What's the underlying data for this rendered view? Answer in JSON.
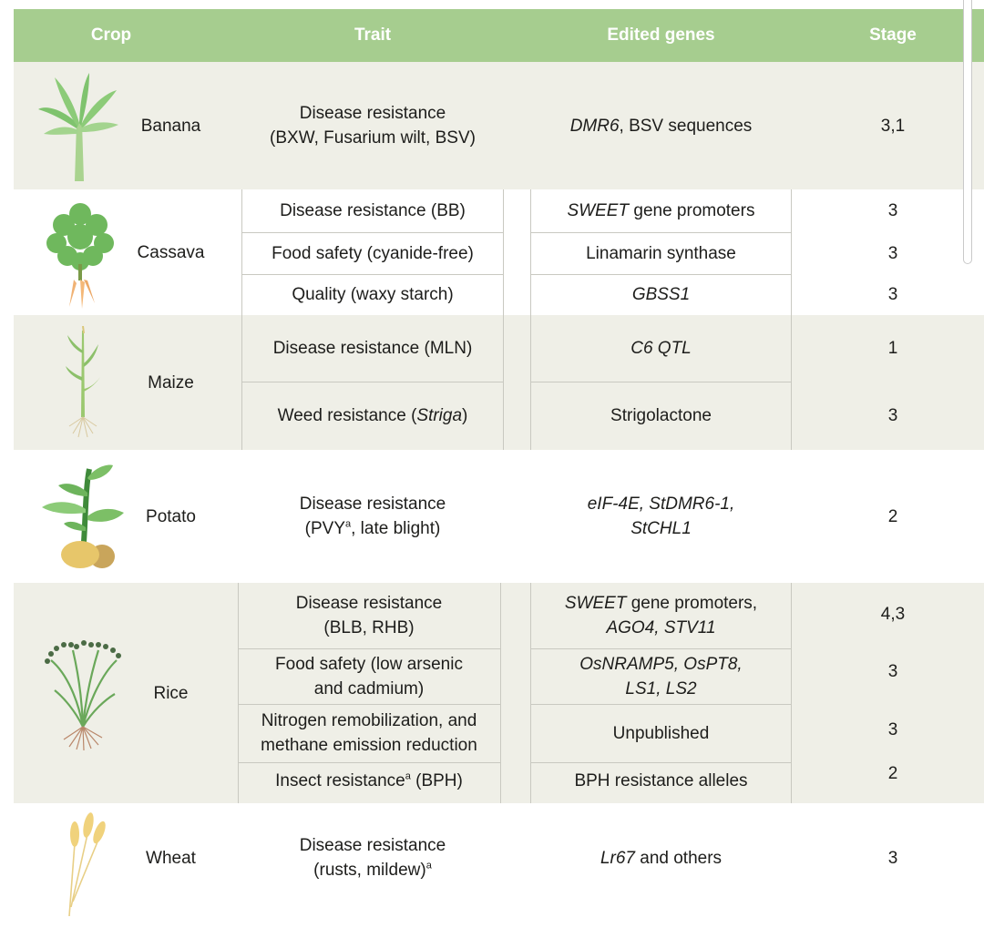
{
  "header": {
    "crop": "Crop",
    "trait": "Trait",
    "genes": "Edited genes",
    "stage": "Stage"
  },
  "rows": {
    "banana": {
      "crop": "Banana",
      "trait_line1": "Disease resistance",
      "trait_line2": "(BXW, Fusarium wilt, BSV)",
      "gene_italic": "DMR6",
      "gene_rest": ", BSV sequences",
      "stage": "3,1"
    },
    "cassava": {
      "crop": "Cassava",
      "sub": [
        {
          "trait": "Disease resistance (BB)",
          "gene_italic": "SWEET",
          "gene_rest": " gene promoters",
          "stage": "3"
        },
        {
          "trait": "Food safety (cyanide-free)",
          "gene_italic": "",
          "gene_rest": "Linamarin synthase",
          "stage": "3"
        },
        {
          "trait": "Quality (waxy starch)",
          "gene_italic": "GBSS1",
          "gene_rest": "",
          "stage": "3"
        }
      ]
    },
    "maize": {
      "crop": "Maize",
      "sub": [
        {
          "trait": "Disease resistance (MLN)",
          "gene_italic": "C6 QTL",
          "stage": "1"
        },
        {
          "trait_pre": "Weed resistance (",
          "trait_italic": "Striga",
          "trait_post": ")",
          "gene": "Strigolactone",
          "stage": "3"
        }
      ]
    },
    "potato": {
      "crop": "Potato",
      "trait_line1": "Disease resistance",
      "trait_line2_pre": "(PVY",
      "trait_line2_sup": "a",
      "trait_line2_post": ", late blight)",
      "gene_line1": "eIF-4E, StDMR6-1,",
      "gene_line2": "StCHL1",
      "stage": "2"
    },
    "rice": {
      "crop": "Rice",
      "sub": [
        {
          "trait_line1": "Disease resistance",
          "trait_line2": "(BLB, RHB)",
          "gene_l1_italic": "SWEET",
          "gene_l1_rest": " gene promoters,",
          "gene_line2": "AGO4, STV11",
          "stage": "4,3"
        },
        {
          "trait_line1": "Food safety (low arsenic",
          "trait_line2": "and cadmium)",
          "gene_line1": "OsNRAMP5, OsPT8,",
          "gene_line2": "LS1, LS2",
          "stage": "3"
        },
        {
          "trait_line1": "Nitrogen remobilization, and",
          "trait_line2": "methane emission reduction",
          "gene": "Unpublished",
          "stage": "3"
        },
        {
          "trait_pre": "Insect resistance",
          "trait_sup": "a",
          "trait_post": " (BPH)",
          "gene": "BPH resistance alleles",
          "stage": "2"
        }
      ]
    },
    "wheat": {
      "crop": "Wheat",
      "trait_line1": "Disease resistance",
      "trait_line2_pre": "(rusts, mildew)",
      "trait_line2_sup": "a",
      "gene_italic": "Lr67",
      "gene_rest": " and others",
      "stage": "3"
    }
  },
  "icons": [
    "banana-plant-icon",
    "cassava-plant-icon",
    "maize-plant-icon",
    "potato-plant-icon",
    "rice-plant-icon",
    "wheat-plant-icon"
  ],
  "colors": {
    "header": "#a6cd8f",
    "shaded_row": "#efefe7",
    "leaf_green": "#7bbf6a",
    "rule": "#c9c9c1"
  }
}
